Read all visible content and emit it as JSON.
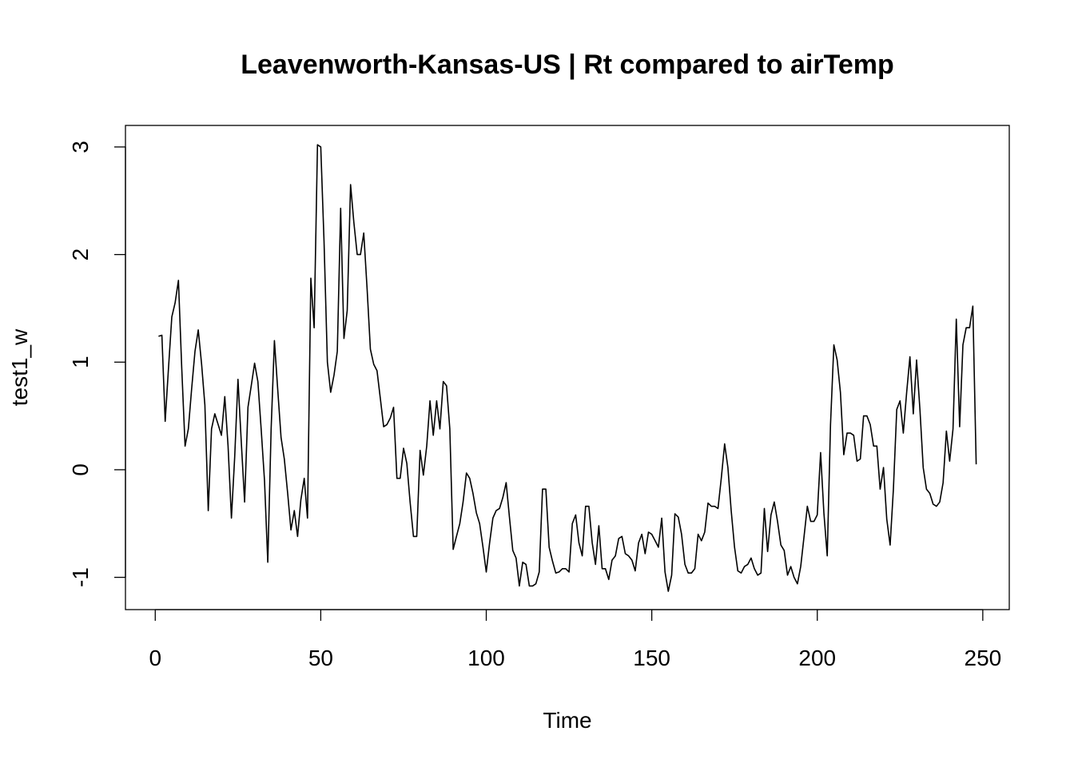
{
  "chart_data": {
    "type": "line",
    "title": "Leavenworth-Kansas-US | Rt compared to airTemp",
    "xlabel": "Time",
    "ylabel": "test1_w",
    "xlim": [
      -9,
      258
    ],
    "ylim": [
      -1.3,
      3.2
    ],
    "xticks": [
      0,
      50,
      100,
      150,
      200,
      250
    ],
    "yticks": [
      -1,
      0,
      1,
      2,
      3
    ],
    "grid": false,
    "legend": "none",
    "line_color": "#000000",
    "series": [
      {
        "x": [
          1,
          2,
          3,
          4,
          5,
          6,
          7,
          8,
          9,
          10,
          11,
          12,
          13,
          14,
          15,
          16,
          17,
          18,
          19,
          20,
          21,
          22,
          23,
          24,
          25,
          26,
          27,
          28,
          29,
          30,
          31,
          32,
          33,
          34,
          35,
          36,
          37,
          38,
          39,
          40,
          41,
          42,
          43,
          44,
          45,
          46,
          47,
          48,
          49,
          50,
          51,
          52,
          53,
          54,
          55,
          56,
          57,
          58,
          59,
          60,
          61,
          62,
          63,
          64,
          65,
          66,
          67,
          68,
          69,
          70,
          71,
          72,
          73,
          74,
          75,
          76,
          77,
          78,
          79,
          80,
          81,
          82,
          83,
          84,
          85,
          86,
          87,
          88,
          89,
          90,
          91,
          92,
          93,
          94,
          95,
          96,
          97,
          98,
          99,
          100,
          101,
          102,
          103,
          104,
          105,
          106,
          107,
          108,
          109,
          110,
          111,
          112,
          113,
          114,
          115,
          116,
          117,
          118,
          119,
          120,
          121,
          122,
          123,
          124,
          125,
          126,
          127,
          128,
          129,
          130,
          131,
          132,
          133,
          134,
          135,
          136,
          137,
          138,
          139,
          140,
          141,
          142,
          143,
          144,
          145,
          146,
          147,
          148,
          149,
          150,
          151,
          152,
          153,
          154,
          155,
          156,
          157,
          158,
          159,
          160,
          161,
          162,
          163,
          164,
          165,
          166,
          167,
          168,
          169,
          170,
          171,
          172,
          173,
          174,
          175,
          176,
          177,
          178,
          179,
          180,
          181,
          182,
          183,
          184,
          185,
          186,
          187,
          188,
          189,
          190,
          191,
          192,
          193,
          194,
          195,
          196,
          197,
          198,
          199,
          200,
          201,
          202,
          203,
          204,
          205,
          206,
          207,
          208,
          209,
          210,
          211,
          212,
          213,
          214,
          215,
          216,
          217,
          218,
          219,
          220,
          221,
          222,
          223,
          224,
          225,
          226,
          227,
          228,
          229,
          230,
          231,
          232,
          233,
          234,
          235,
          236,
          237,
          238,
          239,
          240,
          241,
          242,
          243,
          244,
          245,
          246,
          247,
          248
        ],
        "values": [
          1.24,
          1.25,
          0.45,
          0.95,
          1.42,
          1.55,
          1.76,
          0.95,
          0.22,
          0.38,
          0.75,
          1.1,
          1.3,
          0.98,
          0.6,
          -0.38,
          0.38,
          0.52,
          0.42,
          0.32,
          0.68,
          0.22,
          -0.45,
          0.12,
          0.84,
          0.25,
          -0.3,
          0.58,
          0.78,
          0.99,
          0.82,
          0.38,
          -0.1,
          -0.86,
          0.38,
          1.2,
          0.75,
          0.3,
          0.1,
          -0.22,
          -0.56,
          -0.38,
          -0.62,
          -0.28,
          -0.08,
          -0.45,
          1.78,
          1.32,
          3.02,
          3.0,
          2.12,
          1.0,
          0.72,
          0.88,
          1.1,
          2.43,
          1.22,
          1.48,
          2.65,
          2.3,
          2.0,
          2.0,
          2.2,
          1.68,
          1.12,
          0.98,
          0.92,
          0.66,
          0.4,
          0.42,
          0.48,
          0.58,
          -0.08,
          -0.08,
          0.2,
          0.06,
          -0.3,
          -0.62,
          -0.62,
          0.18,
          -0.05,
          0.22,
          0.64,
          0.32,
          0.64,
          0.38,
          0.82,
          0.78,
          0.38,
          -0.74,
          -0.62,
          -0.5,
          -0.3,
          -0.03,
          -0.08,
          -0.22,
          -0.4,
          -0.5,
          -0.72,
          -0.95,
          -0.68,
          -0.45,
          -0.38,
          -0.36,
          -0.26,
          -0.12,
          -0.44,
          -0.75,
          -0.82,
          -1.08,
          -0.86,
          -0.88,
          -1.08,
          -1.08,
          -1.06,
          -0.95,
          -0.18,
          -0.18,
          -0.72,
          -0.85,
          -0.96,
          -0.95,
          -0.92,
          -0.92,
          -0.95,
          -0.5,
          -0.42,
          -0.68,
          -0.8,
          -0.34,
          -0.34,
          -0.68,
          -0.88,
          -0.52,
          -0.92,
          -0.92,
          -1.02,
          -0.84,
          -0.8,
          -0.64,
          -0.62,
          -0.78,
          -0.8,
          -0.84,
          -0.94,
          -0.68,
          -0.6,
          -0.78,
          -0.58,
          -0.6,
          -0.66,
          -0.72,
          -0.45,
          -0.95,
          -1.13,
          -0.98,
          -0.41,
          -0.44,
          -0.6,
          -0.88,
          -0.96,
          -0.96,
          -0.92,
          -0.6,
          -0.66,
          -0.58,
          -0.31,
          -0.34,
          -0.34,
          -0.36,
          -0.08,
          0.24,
          0.02,
          -0.38,
          -0.72,
          -0.94,
          -0.96,
          -0.9,
          -0.88,
          -0.82,
          -0.92,
          -0.98,
          -0.96,
          -0.36,
          -0.76,
          -0.42,
          -0.3,
          -0.48,
          -0.7,
          -0.75,
          -0.98,
          -0.9,
          -1.0,
          -1.06,
          -0.9,
          -0.62,
          -0.34,
          -0.48,
          -0.48,
          -0.42,
          0.16,
          -0.4,
          -0.8,
          0.42,
          1.16,
          1.02,
          0.72,
          0.14,
          0.34,
          0.34,
          0.32,
          0.08,
          0.1,
          0.5,
          0.5,
          0.42,
          0.22,
          0.22,
          -0.18,
          0.02,
          -0.46,
          -0.7,
          -0.18,
          0.56,
          0.64,
          0.34,
          0.72,
          1.05,
          0.52,
          1.02,
          0.56,
          0.02,
          -0.18,
          -0.22,
          -0.32,
          -0.34,
          -0.3,
          -0.12,
          0.36,
          0.08,
          0.38,
          1.4,
          0.4,
          1.16,
          1.32,
          1.32,
          1.52,
          0.05
        ]
      }
    ]
  }
}
